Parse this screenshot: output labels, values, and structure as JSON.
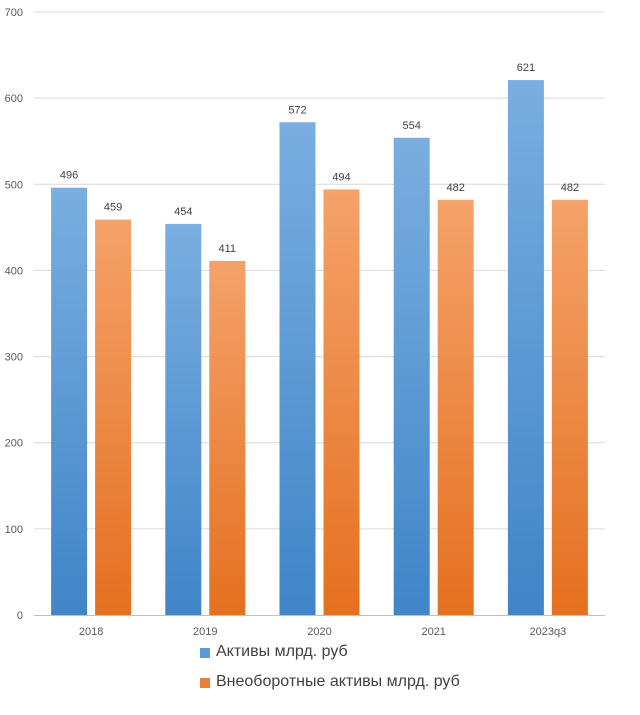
{
  "chart_data": {
    "type": "bar",
    "title": "",
    "xlabel": "",
    "ylabel": "",
    "categories": [
      "2018",
      "2019",
      "2020",
      "2021",
      "2023q3"
    ],
    "series": [
      {
        "name": "Активы млрд. руб",
        "values": [
          496,
          454,
          572,
          554,
          621
        ],
        "color": "#5b9bd5"
      },
      {
        "name": "Внеоборотные активы млрд. руб",
        "values": [
          459,
          411,
          494,
          482,
          482
        ],
        "color": "#ed7d31"
      }
    ],
    "ylim": [
      0,
      700
    ],
    "yticks": [
      0,
      100,
      200,
      300,
      400,
      500,
      600,
      700
    ],
    "grid": true,
    "legend": "bottom",
    "data_labels": true
  }
}
